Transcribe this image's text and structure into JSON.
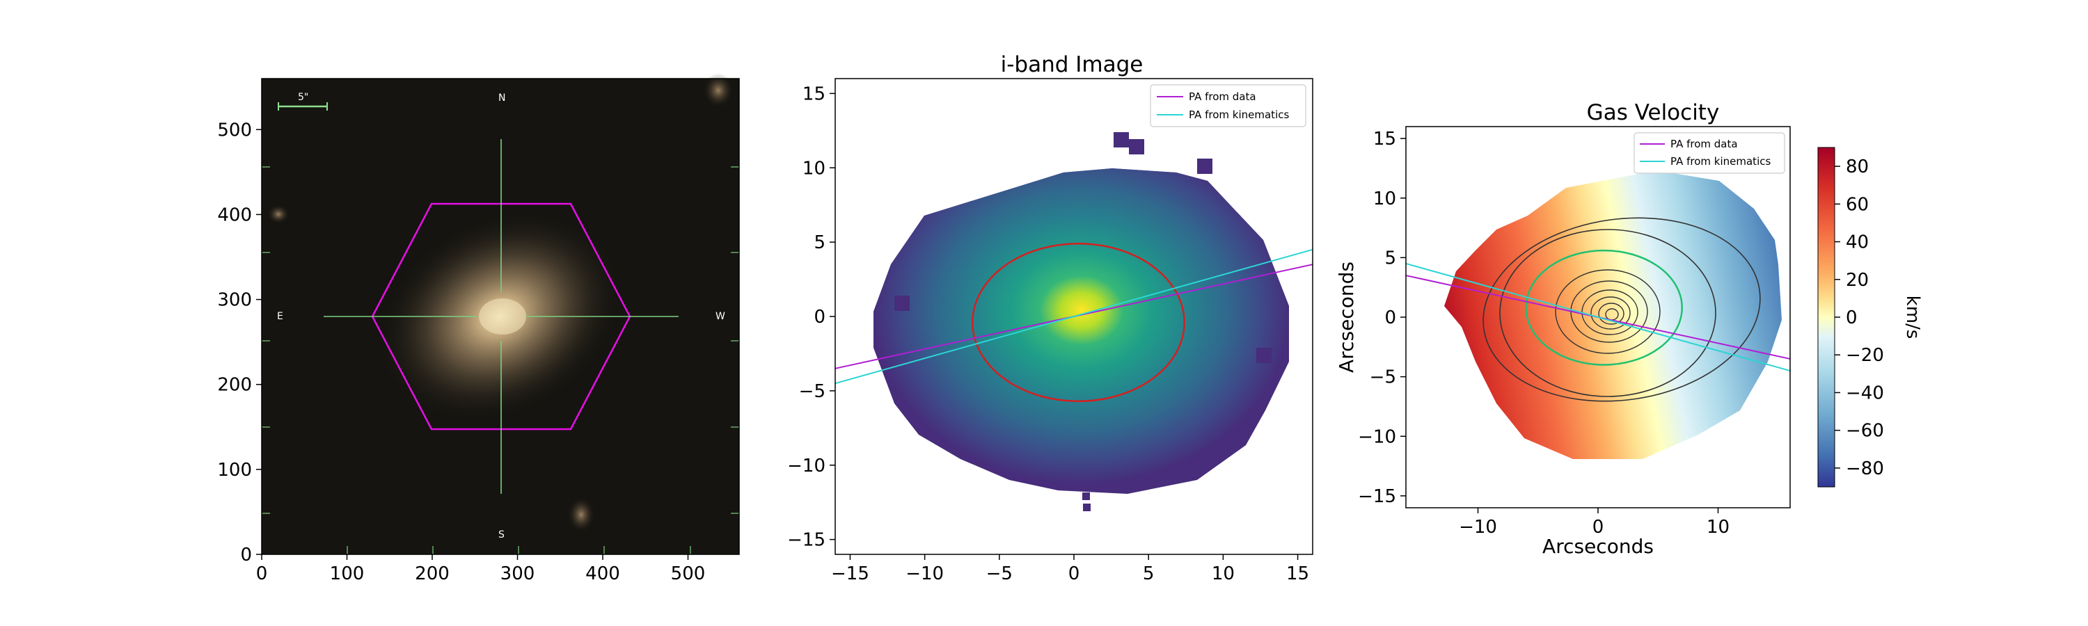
{
  "chart_data": [
    {
      "type": "image",
      "xlim": [
        0,
        560
      ],
      "ylim": [
        560,
        0
      ],
      "xticks": [
        "0",
        "100",
        "200",
        "300",
        "400",
        "500"
      ],
      "yticks": [
        "0",
        "100",
        "200",
        "300",
        "400",
        "500"
      ],
      "annotations": {
        "scale_bar": "5\"",
        "north": "N",
        "south": "S",
        "east": "E",
        "west": "W"
      },
      "hexagon_color": "#e60fe6",
      "crosshair_color": "#7fd07f"
    },
    {
      "type": "heatmap",
      "title": "i-band Image",
      "xlim": [
        -16,
        16
      ],
      "ylim": [
        16,
        -16
      ],
      "xticks": [
        "−15",
        "−10",
        "−5",
        "0",
        "5",
        "10",
        "15"
      ],
      "yticks": [
        "−15",
        "−10",
        "−5",
        "0",
        "5",
        "10",
        "15"
      ],
      "colormap": "viridis",
      "legend": {
        "position": "top-right",
        "entries": [
          "PA from data",
          "PA from kinematics"
        ]
      },
      "lines": [
        {
          "name": "PA from data",
          "color": "#b01fd4",
          "points": [
            [
              -16,
              -3.5
            ],
            [
              16,
              3.5
            ]
          ]
        },
        {
          "name": "PA from kinematics",
          "color": "#2dd4d4",
          "points": [
            [
              -16,
              -4.5
            ],
            [
              16,
              4.5
            ]
          ]
        }
      ],
      "ellipse": {
        "center": [
          0.3,
          -0.4
        ],
        "semi_axes": [
          7.1,
          5.3
        ],
        "color": "#d42020"
      }
    },
    {
      "type": "heatmap",
      "title": "Gas Velocity",
      "xlabel": "Arcseconds",
      "ylabel": "Arcseconds",
      "xlim": [
        -16,
        16
      ],
      "ylim": [
        -16,
        16
      ],
      "xticks": [
        "−10",
        "0",
        "10"
      ],
      "yticks": [
        "−15",
        "−10",
        "−5",
        "0",
        "5",
        "10",
        "15"
      ],
      "colormap": "RdYlBu_r",
      "colorbar": {
        "label": "km/s",
        "range": [
          -90,
          90
        ],
        "ticks": [
          "80",
          "60",
          "40",
          "20",
          "0",
          "−20",
          "−40",
          "−60",
          "−80"
        ]
      },
      "legend": {
        "position": "top-right",
        "entries": [
          "PA from data",
          "PA from kinematics"
        ]
      },
      "lines": [
        {
          "name": "PA from data",
          "color": "#b01fd4",
          "points": [
            [
              -16,
              3.5
            ],
            [
              16,
              -3.5
            ]
          ]
        },
        {
          "name": "PA from kinematics",
          "color": "#2dd4d4",
          "points": [
            [
              -16,
              4.5
            ],
            [
              16,
              -4.5
            ]
          ]
        }
      ],
      "green_contour": {
        "center": [
          0.5,
          0.8
        ],
        "semi_axes": [
          6.5,
          4.8
        ],
        "color": "#20c070"
      }
    }
  ]
}
